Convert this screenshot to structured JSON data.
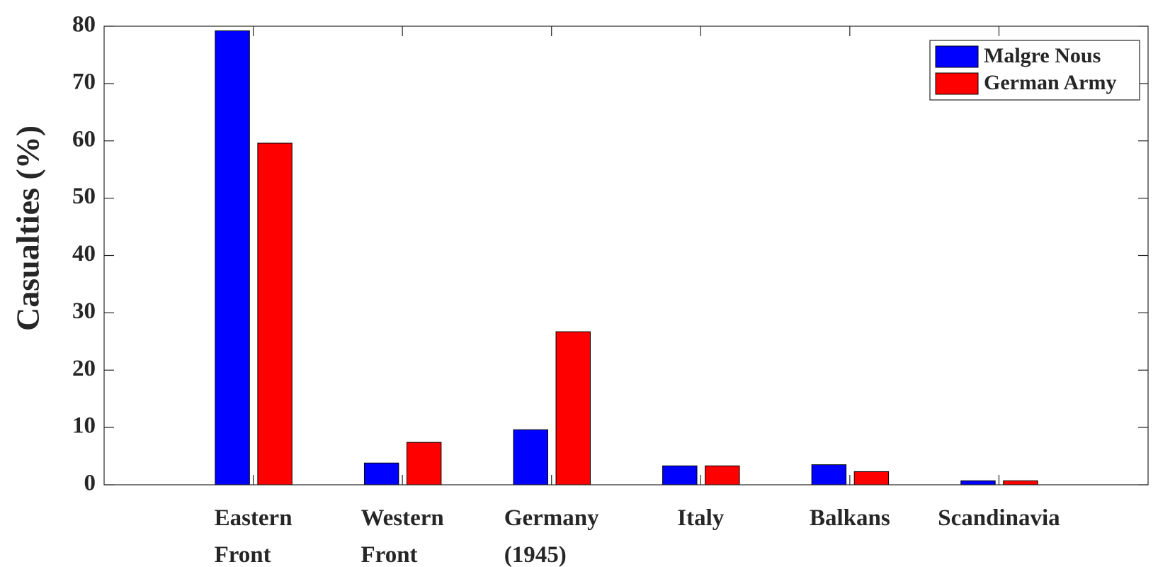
{
  "chart_data": {
    "type": "bar",
    "y_label": "Casualties (%)",
    "categories": [
      "Eastern Front",
      "Western Front",
      "Germany (1945)",
      "Italy",
      "Balkans",
      "Scandinavia"
    ],
    "series": [
      {
        "name": "Malgre Nous",
        "color": "#0000ff",
        "values": [
          79.2,
          3.8,
          9.6,
          3.3,
          3.5,
          0.7
        ]
      },
      {
        "name": "German Army",
        "color": "#ff0000",
        "values": [
          59.6,
          7.4,
          26.7,
          3.3,
          2.3,
          0.7
        ]
      }
    ],
    "ylim": [
      0,
      80
    ],
    "yticks": [
      0,
      10,
      20,
      30,
      40,
      50,
      60,
      70,
      80
    ],
    "legend": "top-right"
  }
}
